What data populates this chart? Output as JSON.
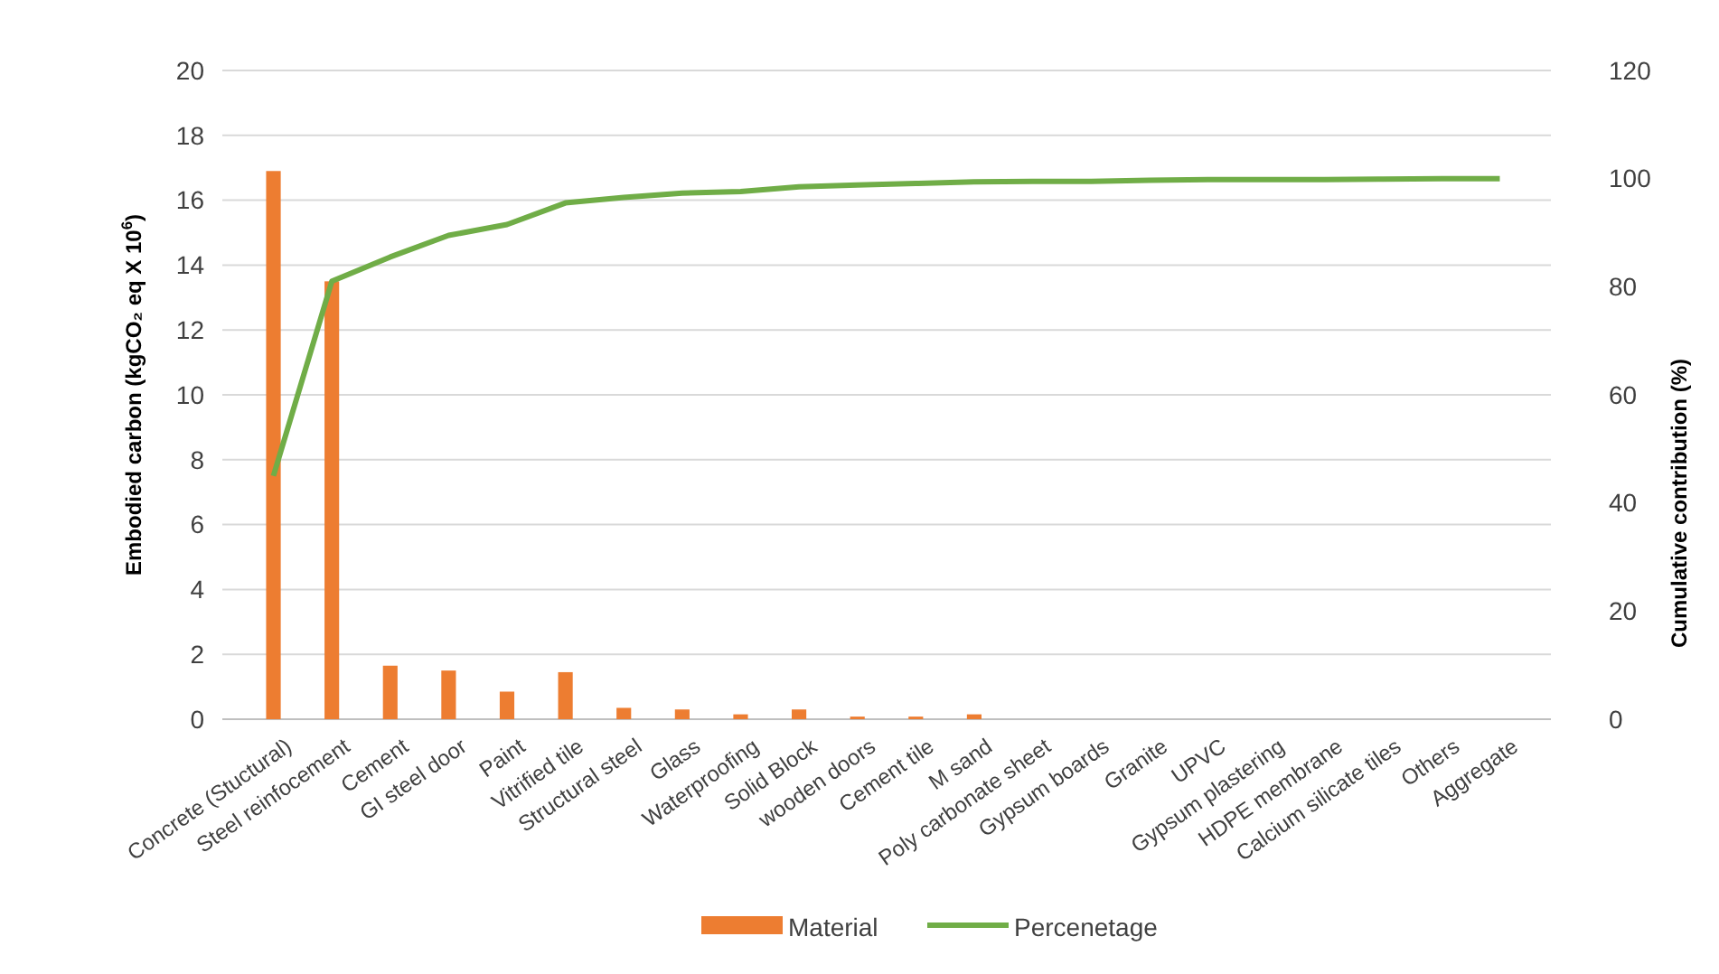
{
  "chart_data": {
    "type": "bar",
    "ylabel": "Embodied carbon (kgCO₂ eq X 10$^{6}$)",
    "y2label": "Cumulative contribution (%)",
    "categories": [
      "Concrete (Stuctural)",
      "Steel reinfocement",
      "Cement",
      "GI steel door",
      "Paint",
      "Vitrified tile",
      "Structural steel",
      "Glass",
      "Waterproofing",
      "Solid Block",
      "wooden doors",
      "Cement tile",
      "M sand",
      "Poly carbonate sheet",
      "Gypsum boards",
      "Granite",
      "UPVC",
      "Gypsum plastering",
      "HDPE membrane",
      "Calcium silicate tiles",
      "Others",
      "Aggregate"
    ],
    "series": [
      {
        "name": "Material",
        "type": "bar",
        "color": "#ed7d31",
        "values": [
          16.9,
          13.5,
          1.65,
          1.5,
          0.85,
          1.45,
          0.35,
          0.3,
          0.15,
          0.3,
          0.08,
          0.08,
          0.15,
          0,
          0,
          0,
          0,
          0,
          0,
          0,
          0,
          0
        ]
      },
      {
        "name": "Percenetage",
        "type": "line",
        "axis": "y2",
        "color": "#70ad47",
        "values": [
          45,
          81,
          85.5,
          89.5,
          91.5,
          95.5,
          96.5,
          97.3,
          97.6,
          98.5,
          98.8,
          99.1,
          99.4,
          99.5,
          99.5,
          99.7,
          99.8,
          99.8,
          99.8,
          99.9,
          100,
          100
        ]
      }
    ],
    "ylim": [
      0,
      20
    ],
    "yticks": [
      0,
      2,
      4,
      6,
      8,
      10,
      12,
      14,
      16,
      18,
      20
    ],
    "y2lim": [
      0,
      120
    ],
    "y2ticks": [
      0,
      20,
      40,
      60,
      80,
      100,
      120
    ],
    "grid": "y",
    "legend": "bottom",
    "line_style": "solid"
  }
}
